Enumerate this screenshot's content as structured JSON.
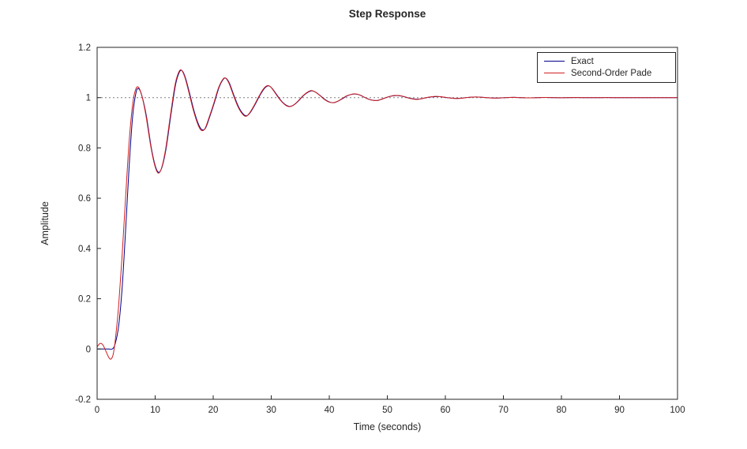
{
  "figure": {
    "background": "#FFFFFF"
  },
  "chart_data": {
    "type": "line",
    "title": "Step Response",
    "xlabel": "Time (seconds)",
    "ylabel": "Amplitude",
    "xlim": [
      0,
      100
    ],
    "ylim": [
      -0.2,
      1.2
    ],
    "grid": false,
    "axis_color": "#262626",
    "xticks": {
      "values": [
        0,
        10,
        20,
        30,
        40,
        50,
        60,
        70,
        80,
        90,
        100
      ],
      "labels": [
        "0",
        "10",
        "20",
        "30",
        "40",
        "50",
        "60",
        "70",
        "80",
        "90",
        "100"
      ]
    },
    "yticks": {
      "values": [
        -0.2,
        0,
        0.2,
        0.4,
        0.6,
        0.8,
        1,
        1.2
      ],
      "labels": [
        "-0.2",
        "0",
        "0.2",
        "0.4",
        "0.6",
        "0.8",
        "1",
        "1.2"
      ]
    },
    "reference_line": {
      "y": 1,
      "style": "dashed",
      "color": "#7F7F7F"
    },
    "legend": {
      "position": "northeast",
      "entries": [
        "Exact",
        "Second-Order Pade"
      ]
    },
    "series": [
      {
        "name": "Exact",
        "color": "#00008B",
        "points": [
          [
            0,
            0
          ],
          [
            1,
            0
          ],
          [
            2,
            0
          ],
          [
            2.6,
            0
          ],
          [
            3.1,
            0.02
          ],
          [
            3.7,
            0.09
          ],
          [
            4.3,
            0.24
          ],
          [
            4.9,
            0.47
          ],
          [
            5.5,
            0.72
          ],
          [
            6.1,
            0.92
          ],
          [
            6.7,
            1.02
          ],
          [
            7.2,
            1.035
          ],
          [
            7.8,
            1.0
          ],
          [
            8.5,
            0.925
          ],
          [
            9.3,
            0.805
          ],
          [
            10,
            0.73
          ],
          [
            10.6,
            0.703
          ],
          [
            11.2,
            0.725
          ],
          [
            11.9,
            0.8
          ],
          [
            12.7,
            0.93
          ],
          [
            13.5,
            1.05
          ],
          [
            14.1,
            1.098
          ],
          [
            14.6,
            1.108
          ],
          [
            15.2,
            1.08
          ],
          [
            15.9,
            1.02
          ],
          [
            16.7,
            0.947
          ],
          [
            17.5,
            0.892
          ],
          [
            18.1,
            0.872
          ],
          [
            18.7,
            0.88
          ],
          [
            19.4,
            0.924
          ],
          [
            20.2,
            0.98
          ],
          [
            21,
            1.04
          ],
          [
            21.7,
            1.072
          ],
          [
            22.2,
            1.077
          ],
          [
            22.8,
            1.057
          ],
          [
            23.6,
            1.007
          ],
          [
            24.4,
            0.962
          ],
          [
            25.2,
            0.934
          ],
          [
            25.8,
            0.928
          ],
          [
            26.4,
            0.941
          ],
          [
            27.2,
            0.972
          ],
          [
            28,
            1.007
          ],
          [
            28.8,
            1.036
          ],
          [
            29.5,
            1.047
          ],
          [
            30.1,
            1.038
          ],
          [
            30.9,
            1.013
          ],
          [
            31.7,
            0.988
          ],
          [
            32.5,
            0.971
          ],
          [
            33.2,
            0.965
          ],
          [
            33.9,
            0.971
          ],
          [
            34.7,
            0.987
          ],
          [
            35.5,
            1.007
          ],
          [
            36.3,
            1.021
          ],
          [
            37,
            1.027
          ],
          [
            37.7,
            1.021
          ],
          [
            38.5,
            1.007
          ],
          [
            39.3,
            0.992
          ],
          [
            40.1,
            0.982
          ],
          [
            40.8,
            0.98
          ],
          [
            41.5,
            0.986
          ],
          [
            42.3,
            0.996
          ],
          [
            43.1,
            1.007
          ],
          [
            43.9,
            1.013
          ],
          [
            44.6,
            1.014
          ],
          [
            45.3,
            1.01
          ],
          [
            46.1,
            1.001
          ],
          [
            46.9,
            0.993
          ],
          [
            47.7,
            0.989
          ],
          [
            48.4,
            0.989
          ],
          [
            49.1,
            0.994
          ],
          [
            49.9,
            1.001
          ],
          [
            50.7,
            1.006
          ],
          [
            51.5,
            1.008
          ],
          [
            52.2,
            1.007
          ],
          [
            53,
            1.003
          ],
          [
            53.8,
            0.998
          ],
          [
            54.6,
            0.995
          ],
          [
            55.3,
            0.994
          ],
          [
            56,
            0.996
          ],
          [
            56.8,
            1
          ],
          [
            57.6,
            1.003
          ],
          [
            58.4,
            1.004
          ],
          [
            59.1,
            1.004
          ],
          [
            59.9,
            1.001
          ],
          [
            60.7,
            0.999
          ],
          [
            61.5,
            0.997
          ],
          [
            62.2,
            0.997
          ],
          [
            62.9,
            0.998
          ],
          [
            63.7,
            1.0005
          ],
          [
            64.5,
            1.002
          ],
          [
            65.3,
            1.0025
          ],
          [
            66,
            1.002
          ],
          [
            66.8,
            1.0005
          ],
          [
            67.6,
            0.999
          ],
          [
            68.4,
            0.9985
          ],
          [
            69.1,
            0.9985
          ],
          [
            70,
            0.9995
          ],
          [
            71,
            1.0008
          ],
          [
            72,
            1.001
          ],
          [
            73,
            1
          ],
          [
            74,
            0.9993
          ],
          [
            75,
            0.9993
          ],
          [
            76,
            1
          ],
          [
            77,
            1.0005
          ],
          [
            78,
            1.0004
          ],
          [
            79,
            0.9998
          ],
          [
            80,
            0.9996
          ],
          [
            81,
            0.9999
          ],
          [
            82,
            1.0002
          ],
          [
            83,
            1.0002
          ],
          [
            84,
            0.9999
          ],
          [
            85,
            0.9998
          ],
          [
            86,
            1
          ],
          [
            88,
            1.0001
          ],
          [
            90,
            0.9999
          ],
          [
            92,
            1
          ],
          [
            94,
            1
          ],
          [
            96,
            1
          ],
          [
            98,
            1
          ],
          [
            100,
            1
          ]
        ]
      },
      {
        "name": "Second-Order Pade",
        "color": "#D01F1F",
        "points": [
          [
            0,
            0.008
          ],
          [
            0.5,
            0.022
          ],
          [
            1,
            0.016
          ],
          [
            1.5,
            -0.008
          ],
          [
            2,
            -0.033
          ],
          [
            2.4,
            -0.04
          ],
          [
            2.8,
            -0.018
          ],
          [
            3.2,
            0.05
          ],
          [
            3.7,
            0.17
          ],
          [
            4.3,
            0.37
          ],
          [
            4.9,
            0.6
          ],
          [
            5.5,
            0.82
          ],
          [
            6.1,
            0.97
          ],
          [
            6.6,
            1.03
          ],
          [
            7.1,
            1.042
          ],
          [
            7.7,
            1.008
          ],
          [
            8.4,
            0.93
          ],
          [
            9.2,
            0.812
          ],
          [
            9.9,
            0.733
          ],
          [
            10.5,
            0.7
          ],
          [
            11.1,
            0.72
          ],
          [
            11.8,
            0.795
          ],
          [
            12.6,
            0.925
          ],
          [
            13.4,
            1.048
          ],
          [
            14,
            1.098
          ],
          [
            14.5,
            1.11
          ],
          [
            15.1,
            1.082
          ],
          [
            15.8,
            1.022
          ],
          [
            16.6,
            0.948
          ],
          [
            17.4,
            0.891
          ],
          [
            18,
            0.869
          ],
          [
            18.6,
            0.878
          ],
          [
            19.3,
            0.922
          ],
          [
            20.1,
            0.978
          ],
          [
            20.9,
            1.038
          ],
          [
            21.6,
            1.071
          ],
          [
            22.1,
            1.078
          ],
          [
            22.7,
            1.058
          ],
          [
            23.5,
            1.008
          ],
          [
            24.3,
            0.962
          ],
          [
            25.1,
            0.933
          ],
          [
            25.7,
            0.926
          ],
          [
            26.3,
            0.94
          ],
          [
            27.1,
            0.971
          ],
          [
            27.9,
            1.006
          ],
          [
            28.7,
            1.036
          ],
          [
            29.4,
            1.048
          ],
          [
            30,
            1.04
          ],
          [
            30.8,
            1.014
          ],
          [
            31.6,
            0.989
          ],
          [
            32.4,
            0.971
          ],
          [
            33.1,
            0.964
          ],
          [
            33.8,
            0.97
          ],
          [
            34.6,
            0.986
          ],
          [
            35.4,
            1.006
          ],
          [
            36.2,
            1.021
          ],
          [
            36.9,
            1.028
          ],
          [
            37.6,
            1.022
          ],
          [
            38.4,
            1.008
          ],
          [
            39.2,
            0.992
          ],
          [
            40,
            0.982
          ],
          [
            40.7,
            0.98
          ],
          [
            41.4,
            0.985
          ],
          [
            42.2,
            0.996
          ],
          [
            43,
            1.007
          ],
          [
            43.8,
            1.013
          ],
          [
            44.5,
            1.015
          ],
          [
            45.2,
            1.011
          ],
          [
            46,
            1.002
          ],
          [
            46.8,
            0.993
          ],
          [
            47.6,
            0.989
          ],
          [
            48.3,
            0.989
          ],
          [
            49,
            0.994
          ],
          [
            49.8,
            1
          ],
          [
            50.6,
            1.006
          ],
          [
            51.4,
            1.009
          ],
          [
            52.1,
            1.008
          ],
          [
            52.9,
            1.004
          ],
          [
            53.7,
            0.998
          ],
          [
            54.5,
            0.994
          ],
          [
            55.2,
            0.993
          ],
          [
            55.9,
            0.996
          ],
          [
            56.7,
            1
          ],
          [
            57.5,
            1.003
          ],
          [
            58.3,
            1.005
          ],
          [
            59,
            1.004
          ],
          [
            59.8,
            1.002
          ],
          [
            60.6,
            0.999
          ],
          [
            61.4,
            0.997
          ],
          [
            62.1,
            0.9965
          ],
          [
            62.8,
            0.998
          ],
          [
            63.6,
            1
          ],
          [
            64.4,
            1.002
          ],
          [
            65.2,
            1.0025
          ],
          [
            65.9,
            1.002
          ],
          [
            66.7,
            1.0008
          ],
          [
            67.5,
            0.9992
          ],
          [
            68.3,
            0.9983
          ],
          [
            69,
            0.9986
          ],
          [
            70,
            0.9996
          ],
          [
            71,
            1.0008
          ],
          [
            72,
            1.0009
          ],
          [
            73,
            1
          ],
          [
            74,
            0.9992
          ],
          [
            75,
            0.9993
          ],
          [
            76,
            1
          ],
          [
            77,
            1.0006
          ],
          [
            78,
            1.0004
          ],
          [
            79,
            0.9998
          ],
          [
            80,
            0.9996
          ],
          [
            81,
            0.9999
          ],
          [
            82,
            1.0002
          ],
          [
            83,
            1.0002
          ],
          [
            84,
            0.9999
          ],
          [
            85,
            0.9998
          ],
          [
            86,
            1
          ],
          [
            88,
            1.0001
          ],
          [
            90,
            0.9999
          ],
          [
            92,
            1
          ],
          [
            94,
            1
          ],
          [
            96,
            1
          ],
          [
            98,
            1
          ],
          [
            100,
            1
          ]
        ]
      }
    ]
  }
}
